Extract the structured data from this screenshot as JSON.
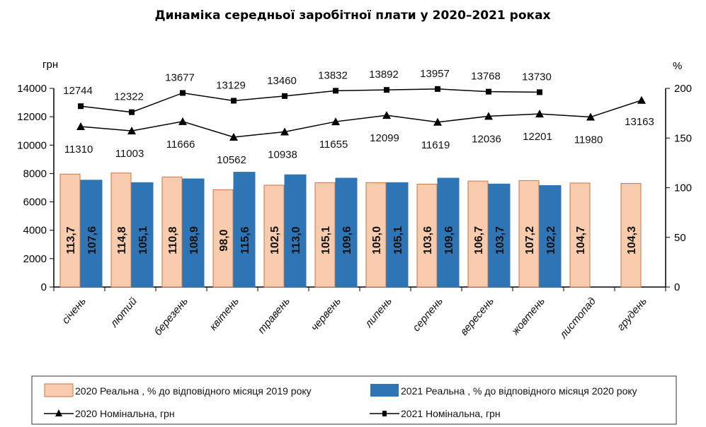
{
  "chart_data": {
    "type": "bar+line",
    "title": "Динаміка середньої заробітної плати у 2020–2021 роках",
    "left_axis": {
      "unit_label": "грн",
      "range": [
        0,
        14000
      ],
      "ticks": [
        "0",
        "2000",
        "4000",
        "6000",
        "8000",
        "10000",
        "12000",
        "14000"
      ]
    },
    "right_axis": {
      "unit_label": "%",
      "range": [
        0,
        200
      ],
      "ticks": [
        "0",
        "50",
        "100",
        "150",
        "200"
      ]
    },
    "categories": [
      "січень",
      "лютий",
      "березень",
      "квітень",
      "травень",
      "червень",
      "липень",
      "серпень",
      "вересень",
      "жовтень",
      "листопад",
      "грудень"
    ],
    "series": [
      {
        "name": "2020 Реальна , % до відповідного місяця 2019 року",
        "kind": "bar",
        "axis": "right",
        "color": "#F8CBAD",
        "stroke": "#C5774A",
        "values": [
          113.7,
          114.8,
          110.8,
          98.0,
          102.5,
          105.1,
          105.0,
          103.6,
          106.7,
          107.2,
          104.7,
          104.3
        ],
        "labels": [
          "113,7",
          "114,8",
          "110,8",
          "98,0",
          "102,5",
          "105,1",
          "105,0",
          "103,6",
          "106,7",
          "107,2",
          "104,7",
          "104,3"
        ]
      },
      {
        "name": "2021 Реальна , % до відповідного місяця 2020 року",
        "kind": "bar",
        "axis": "right",
        "color": "#2E75B6",
        "stroke": "#2E75B6",
        "values": [
          107.6,
          105.1,
          108.9,
          115.6,
          113.0,
          109.6,
          105.1,
          109.6,
          103.7,
          102.2,
          null,
          null
        ],
        "labels": [
          "107,6",
          "105,1",
          "108,9",
          "115,6",
          "113,0",
          "109,6",
          "105,1",
          "109,6",
          "103,7",
          "102,2",
          "",
          ""
        ]
      },
      {
        "name": "2020 Номінальна, грн",
        "kind": "line",
        "marker": "triangle",
        "axis": "left",
        "color": "#000000",
        "values": [
          11310,
          11003,
          11666,
          10562,
          10938,
          11655,
          12099,
          11619,
          12036,
          12201,
          11980,
          13163
        ]
      },
      {
        "name": "2021 Номінальна, грн",
        "kind": "line",
        "marker": "square",
        "axis": "left",
        "color": "#000000",
        "values": [
          12744,
          12322,
          13677,
          13129,
          13460,
          13832,
          13892,
          13957,
          13768,
          13730,
          null,
          null
        ]
      }
    ],
    "grid": false,
    "legend": "bottom"
  }
}
